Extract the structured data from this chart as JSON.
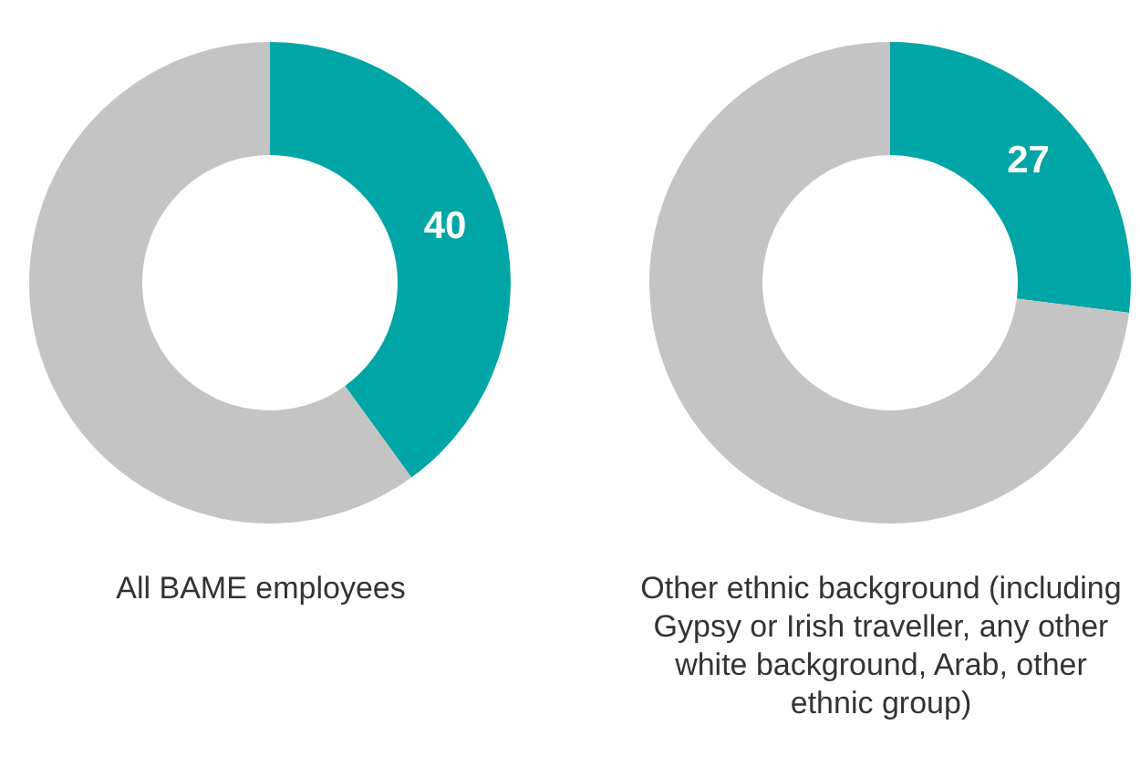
{
  "chart_data": [
    {
      "type": "donut",
      "title": "All BAME employees",
      "categories": [
        null,
        null
      ],
      "values": [
        40,
        60
      ],
      "colors": [
        "#00a6a6",
        "#c4c4c4"
      ],
      "value_labels": [
        "40",
        null
      ]
    },
    {
      "type": "donut",
      "title": "Other ethnic background (including Gypsy or Irish traveller, any other white background, Arab, other ethnic group)",
      "categories": [
        null,
        null
      ],
      "values": [
        27,
        73
      ],
      "colors": [
        "#00a6a6",
        "#c4c4c4"
      ],
      "value_labels": [
        "27",
        null
      ]
    }
  ]
}
